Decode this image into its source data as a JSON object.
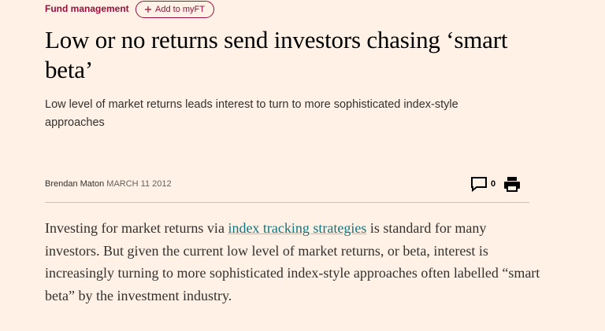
{
  "topic": "Fund management",
  "myft_button": "Add to myFT",
  "headline": "Low or no returns send investors chasing ‘smart beta’",
  "standfirst": "Low level of market returns leads interest to turn to more sophisticated index-style approaches",
  "byline": {
    "author": "Brendan Maton",
    "date": "MARCH 11 2012"
  },
  "comment_count": 0,
  "body": {
    "paragraphs": [
      {
        "before": "Investing for market returns via ",
        "link": "index tracking strategies",
        "after": " is standard for many investors. But given the current low level of market returns, or beta, interest is increasingly turning to more sophisticated index-style approaches often labelled “smart beta” by the investment industry."
      }
    ]
  }
}
